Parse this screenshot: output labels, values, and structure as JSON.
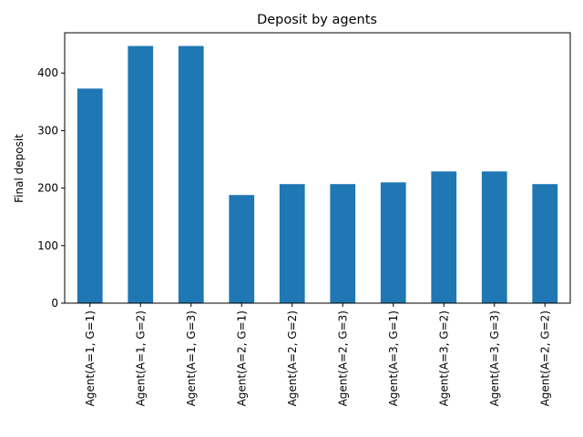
{
  "chart_data": {
    "type": "bar",
    "title": "Deposit by agents",
    "xlabel": "",
    "ylabel": "Final deposit",
    "categories": [
      "Agent(A=1, G=1)",
      "Agent(A=1, G=2)",
      "Agent(A=1, G=3)",
      "Agent(A=2, G=1)",
      "Agent(A=2, G=2)",
      "Agent(A=2, G=3)",
      "Agent(A=3, G=1)",
      "Agent(A=3, G=2)",
      "Agent(A=3, G=3)",
      "Agent(A=2, G=2)"
    ],
    "values": [
      373,
      447,
      447,
      188,
      207,
      207,
      210,
      229,
      229,
      207
    ],
    "ylim": [
      0,
      470
    ],
    "yticks": [
      0,
      100,
      200,
      300,
      400
    ],
    "bar_color": "#1f77b4",
    "grid": false,
    "legend": "none"
  }
}
